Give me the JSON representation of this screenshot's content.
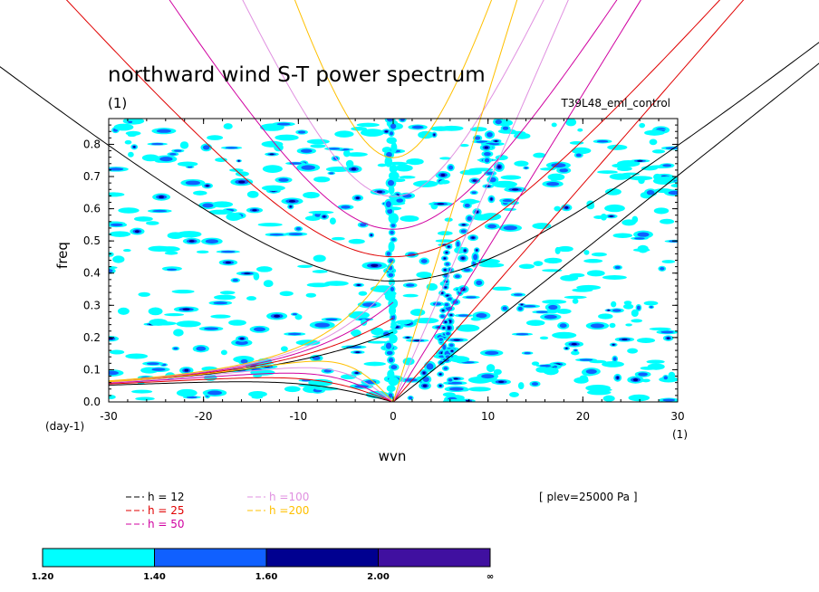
{
  "chart_data": {
    "type": "heatmap",
    "title": "northward wind S-T power spectrum",
    "subtitle_left": "(1)",
    "subtitle_right": "T39L48_eml_control",
    "xlabel": "wvn",
    "ylabel": "freq",
    "x_unit": "(1)",
    "y_unit": "(day-1)",
    "xlim": [
      -30,
      30
    ],
    "ylim": [
      0,
      0.88
    ],
    "x_ticks": [
      -30,
      -20,
      -10,
      0,
      10,
      20,
      30
    ],
    "y_ticks": [
      0.0,
      0.1,
      0.2,
      0.3,
      0.4,
      0.5,
      0.6,
      0.7,
      0.8
    ],
    "x_tick_labels": [
      "-30",
      "-20",
      "-10",
      "0",
      "10",
      "20",
      "30"
    ],
    "y_tick_labels": [
      "0.0",
      "0.1",
      "0.2",
      "0.3",
      "0.4",
      "0.5",
      "0.6",
      "0.7",
      "0.8"
    ],
    "annotation": "[ plev=25000 Pa ]",
    "dispersion_curves": [
      {
        "label": "h = 12",
        "h": 12,
        "color": "#000000"
      },
      {
        "label": "h = 25",
        "h": 25,
        "color": "#e00000"
      },
      {
        "label": "h = 50",
        "h": 50,
        "color": "#d000a0"
      },
      {
        "label": "h =100",
        "h": 100,
        "color": "#e090e0"
      },
      {
        "label": "h =200",
        "h": 200,
        "color": "#ffc000"
      }
    ],
    "colorbar": {
      "levels": [
        "1.20",
        "1.40",
        "1.60",
        "2.00",
        "∞"
      ],
      "colors": [
        "#00ffff",
        "#1060ff",
        "#000090",
        "#4010a0"
      ]
    }
  }
}
